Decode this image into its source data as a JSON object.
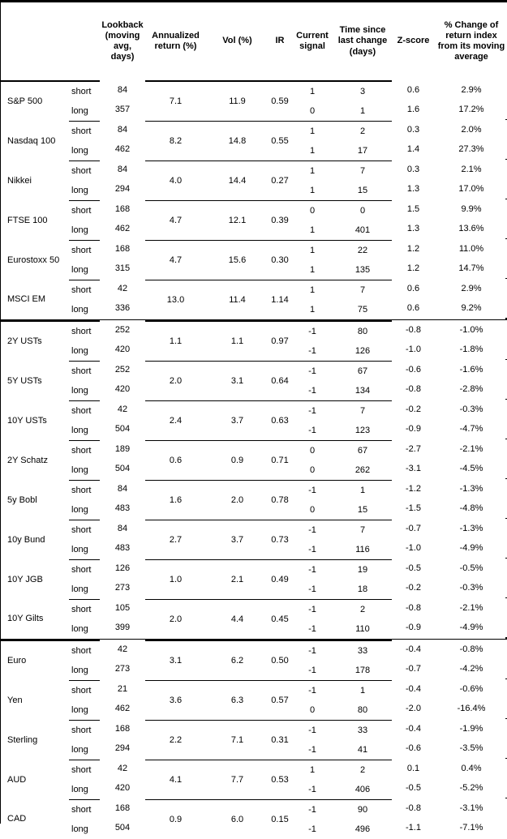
{
  "table": {
    "col_headers": {
      "asset": "",
      "period": "",
      "lookback": "Lookback (moving avg, days)",
      "annualized_return": "Annualized return (%)",
      "vol": "Vol (%)",
      "ir": "IR",
      "current_signal": "Current signal",
      "time_since_change": "Time since last change (days)",
      "z_score": "Z-score",
      "pct_change": "% Change of return index from its moving average"
    },
    "groups": [
      {
        "name": "S&P 500",
        "section_start": false,
        "annualized_return": "7.1",
        "vol": "11.9",
        "ir": "0.59",
        "rows": [
          {
            "period": "short",
            "lookback": "84",
            "signal": "1",
            "time_since_change": "3",
            "z_score": "0.6",
            "pct_change": "2.9%"
          },
          {
            "period": "long",
            "lookback": "357",
            "signal": "0",
            "time_since_change": "1",
            "z_score": "1.6",
            "pct_change": "17.2%"
          }
        ]
      },
      {
        "name": "Nasdaq 100",
        "section_start": false,
        "annualized_return": "8.2",
        "vol": "14.8",
        "ir": "0.55",
        "rows": [
          {
            "period": "short",
            "lookback": "84",
            "signal": "1",
            "time_since_change": "2",
            "z_score": "0.3",
            "pct_change": "2.0%"
          },
          {
            "period": "long",
            "lookback": "462",
            "signal": "1",
            "time_since_change": "17",
            "z_score": "1.4",
            "pct_change": "27.3%"
          }
        ]
      },
      {
        "name": "Nikkei",
        "section_start": false,
        "annualized_return": "4.0",
        "vol": "14.4",
        "ir": "0.27",
        "rows": [
          {
            "period": "short",
            "lookback": "84",
            "signal": "1",
            "time_since_change": "7",
            "z_score": "0.3",
            "pct_change": "2.1%"
          },
          {
            "period": "long",
            "lookback": "294",
            "signal": "1",
            "time_since_change": "15",
            "z_score": "1.3",
            "pct_change": "17.0%"
          }
        ]
      },
      {
        "name": "FTSE 100",
        "section_start": false,
        "annualized_return": "4.7",
        "vol": "12.1",
        "ir": "0.39",
        "rows": [
          {
            "period": "short",
            "lookback": "168",
            "signal": "0",
            "time_since_change": "0",
            "z_score": "1.5",
            "pct_change": "9.9%"
          },
          {
            "period": "long",
            "lookback": "462",
            "signal": "1",
            "time_since_change": "401",
            "z_score": "1.3",
            "pct_change": "13.6%"
          }
        ]
      },
      {
        "name": "Eurostoxx 50",
        "section_start": false,
        "annualized_return": "4.7",
        "vol": "15.6",
        "ir": "0.30",
        "rows": [
          {
            "period": "short",
            "lookback": "168",
            "signal": "1",
            "time_since_change": "22",
            "z_score": "1.2",
            "pct_change": "11.0%"
          },
          {
            "period": "long",
            "lookback": "315",
            "signal": "1",
            "time_since_change": "135",
            "z_score": "1.2",
            "pct_change": "14.7%"
          }
        ]
      },
      {
        "name": "MSCI EM",
        "section_start": false,
        "annualized_return": "13.0",
        "vol": "11.4",
        "ir": "1.14",
        "rows": [
          {
            "period": "short",
            "lookback": "42",
            "signal": "1",
            "time_since_change": "7",
            "z_score": "0.6",
            "pct_change": "2.9%"
          },
          {
            "period": "long",
            "lookback": "336",
            "signal": "1",
            "time_since_change": "75",
            "z_score": "0.6",
            "pct_change": "9.2%"
          }
        ]
      },
      {
        "name": "2Y USTs",
        "section_start": true,
        "annualized_return": "1.1",
        "vol": "1.1",
        "ir": "0.97",
        "rows": [
          {
            "period": "short",
            "lookback": "252",
            "signal": "-1",
            "time_since_change": "80",
            "z_score": "-0.8",
            "pct_change": "-1.0%"
          },
          {
            "period": "long",
            "lookback": "420",
            "signal": "-1",
            "time_since_change": "126",
            "z_score": "-1.0",
            "pct_change": "-1.8%"
          }
        ]
      },
      {
        "name": "5Y USTs",
        "section_start": false,
        "annualized_return": "2.0",
        "vol": "3.1",
        "ir": "0.64",
        "rows": [
          {
            "period": "short",
            "lookback": "252",
            "signal": "-1",
            "time_since_change": "67",
            "z_score": "-0.6",
            "pct_change": "-1.6%"
          },
          {
            "period": "long",
            "lookback": "420",
            "signal": "-1",
            "time_since_change": "134",
            "z_score": "-0.8",
            "pct_change": "-2.8%"
          }
        ]
      },
      {
        "name": "10Y USTs",
        "section_start": false,
        "annualized_return": "2.4",
        "vol": "3.7",
        "ir": "0.63",
        "rows": [
          {
            "period": "short",
            "lookback": "42",
            "signal": "-1",
            "time_since_change": "7",
            "z_score": "-0.2",
            "pct_change": "-0.3%"
          },
          {
            "period": "long",
            "lookback": "504",
            "signal": "-1",
            "time_since_change": "123",
            "z_score": "-0.9",
            "pct_change": "-4.7%"
          }
        ]
      },
      {
        "name": "2Y Schatz",
        "section_start": false,
        "annualized_return": "0.6",
        "vol": "0.9",
        "ir": "0.71",
        "rows": [
          {
            "period": "short",
            "lookback": "189",
            "signal": "0",
            "time_since_change": "67",
            "z_score": "-2.7",
            "pct_change": "-2.1%"
          },
          {
            "period": "long",
            "lookback": "504",
            "signal": "0",
            "time_since_change": "262",
            "z_score": "-3.1",
            "pct_change": "-4.5%"
          }
        ]
      },
      {
        "name": "5y Bobl",
        "section_start": false,
        "annualized_return": "1.6",
        "vol": "2.0",
        "ir": "0.78",
        "rows": [
          {
            "period": "short",
            "lookback": "84",
            "signal": "-1",
            "time_since_change": "1",
            "z_score": "-1.2",
            "pct_change": "-1.3%"
          },
          {
            "period": "long",
            "lookback": "483",
            "signal": "0",
            "time_since_change": "15",
            "z_score": "-1.5",
            "pct_change": "-4.8%"
          }
        ]
      },
      {
        "name": "10y Bund",
        "section_start": false,
        "annualized_return": "2.7",
        "vol": "3.7",
        "ir": "0.73",
        "rows": [
          {
            "period": "short",
            "lookback": "84",
            "signal": "-1",
            "time_since_change": "7",
            "z_score": "-0.7",
            "pct_change": "-1.3%"
          },
          {
            "period": "long",
            "lookback": "483",
            "signal": "-1",
            "time_since_change": "116",
            "z_score": "-1.0",
            "pct_change": "-4.9%"
          }
        ]
      },
      {
        "name": "10Y JGB",
        "section_start": false,
        "annualized_return": "1.0",
        "vol": "2.1",
        "ir": "0.49",
        "rows": [
          {
            "period": "short",
            "lookback": "126",
            "signal": "-1",
            "time_since_change": "19",
            "z_score": "-0.5",
            "pct_change": "-0.5%"
          },
          {
            "period": "long",
            "lookback": "273",
            "signal": "-1",
            "time_since_change": "18",
            "z_score": "-0.2",
            "pct_change": "-0.3%"
          }
        ]
      },
      {
        "name": "10Y Gilts",
        "section_start": false,
        "annualized_return": "2.0",
        "vol": "4.4",
        "ir": "0.45",
        "rows": [
          {
            "period": "short",
            "lookback": "105",
            "signal": "-1",
            "time_since_change": "2",
            "z_score": "-0.8",
            "pct_change": "-2.1%"
          },
          {
            "period": "long",
            "lookback": "399",
            "signal": "-1",
            "time_since_change": "110",
            "z_score": "-0.9",
            "pct_change": "-4.9%"
          }
        ]
      },
      {
        "name": "Euro",
        "section_start": true,
        "annualized_return": "3.1",
        "vol": "6.2",
        "ir": "0.50",
        "rows": [
          {
            "period": "short",
            "lookback": "42",
            "signal": "-1",
            "time_since_change": "33",
            "z_score": "-0.4",
            "pct_change": "-0.8%"
          },
          {
            "period": "long",
            "lookback": "273",
            "signal": "-1",
            "time_since_change": "178",
            "z_score": "-0.7",
            "pct_change": "-4.2%"
          }
        ]
      },
      {
        "name": "Yen",
        "section_start": false,
        "annualized_return": "3.6",
        "vol": "6.3",
        "ir": "0.57",
        "rows": [
          {
            "period": "short",
            "lookback": "21",
            "signal": "-1",
            "time_since_change": "1",
            "z_score": "-0.4",
            "pct_change": "-0.6%"
          },
          {
            "period": "long",
            "lookback": "462",
            "signal": "0",
            "time_since_change": "80",
            "z_score": "-2.0",
            "pct_change": "-16.4%"
          }
        ]
      },
      {
        "name": "Sterling",
        "section_start": false,
        "annualized_return": "2.2",
        "vol": "7.1",
        "ir": "0.31",
        "rows": [
          {
            "period": "short",
            "lookback": "168",
            "signal": "-1",
            "time_since_change": "33",
            "z_score": "-0.4",
            "pct_change": "-1.9%"
          },
          {
            "period": "long",
            "lookback": "294",
            "signal": "-1",
            "time_since_change": "41",
            "z_score": "-0.6",
            "pct_change": "-3.5%"
          }
        ]
      },
      {
        "name": "AUD",
        "section_start": false,
        "annualized_return": "4.1",
        "vol": "7.7",
        "ir": "0.53",
        "rows": [
          {
            "period": "short",
            "lookback": "42",
            "signal": "1",
            "time_since_change": "2",
            "z_score": "0.1",
            "pct_change": "0.4%"
          },
          {
            "period": "long",
            "lookback": "420",
            "signal": "-1",
            "time_since_change": "406",
            "z_score": "-0.5",
            "pct_change": "-5.2%"
          }
        ]
      },
      {
        "name": "CAD",
        "section_start": false,
        "annualized_return": "0.9",
        "vol": "6.0",
        "ir": "0.15",
        "rows": [
          {
            "period": "short",
            "lookback": "168",
            "signal": "-1",
            "time_since_change": "90",
            "z_score": "-0.8",
            "pct_change": "-3.1%"
          },
          {
            "period": "long",
            "lookback": "504",
            "signal": "-1",
            "time_since_change": "496",
            "z_score": "-1.1",
            "pct_change": "-7.1%"
          }
        ]
      }
    ]
  }
}
